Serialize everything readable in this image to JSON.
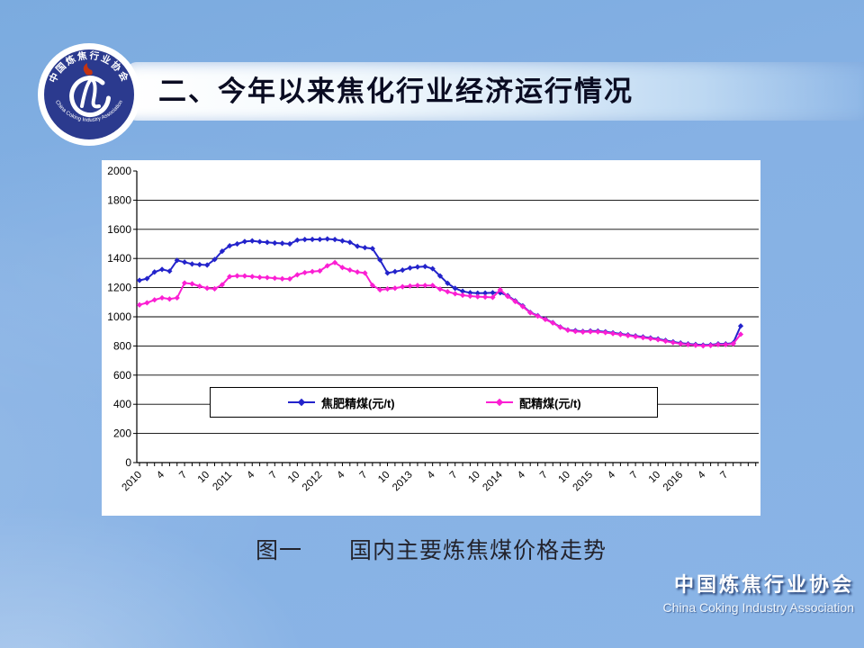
{
  "header": {
    "title": "二、今年以来焦化行业经济运行情况"
  },
  "logo": {
    "ring_text_top": "中国炼焦行业协会",
    "ring_text_bottom": "China Coking Industry Association",
    "navy": "#2b3a8e",
    "flame": "#c43312"
  },
  "caption": "图一　　国内主要炼焦煤价格走势",
  "footer": {
    "name_cn": "中国炼焦行业协会",
    "name_en": "China Coking Industry Association"
  },
  "chart_data": {
    "type": "line",
    "title": "",
    "xlabel": "",
    "ylabel": "",
    "ylim": [
      0,
      2000
    ],
    "ytick_step": 200,
    "grid": "horizontal",
    "legend_position": "inside-bottom",
    "x_frequency": "monthly",
    "x_start": "2010-01",
    "x_end": "2016-09",
    "x_label_every_n_months": 3,
    "x_tick_labels": [
      "2010",
      "4",
      "7",
      "10",
      "2011",
      "4",
      "7",
      "10",
      "2012",
      "4",
      "7",
      "10",
      "2013",
      "4",
      "7",
      "10",
      "2014",
      "4",
      "7",
      "10",
      "2015",
      "4",
      "7",
      "10",
      "2016",
      "4",
      "7"
    ],
    "series": [
      {
        "name": "焦肥精煤(元/t)",
        "color": "#2323cb",
        "values": [
          1250,
          1262,
          1307,
          1325,
          1313,
          1387,
          1375,
          1362,
          1358,
          1355,
          1393,
          1450,
          1487,
          1500,
          1516,
          1521,
          1515,
          1511,
          1506,
          1504,
          1500,
          1526,
          1530,
          1531,
          1531,
          1534,
          1530,
          1521,
          1511,
          1484,
          1474,
          1468,
          1390,
          1300,
          1310,
          1320,
          1335,
          1342,
          1345,
          1330,
          1280,
          1230,
          1195,
          1175,
          1165,
          1162,
          1163,
          1165,
          1165,
          1145,
          1110,
          1075,
          1030,
          1008,
          985,
          960,
          930,
          910,
          905,
          900,
          903,
          902,
          897,
          890,
          883,
          876,
          869,
          862,
          855,
          848,
          838,
          828,
          820,
          814,
          810,
          806,
          808,
          814,
          814,
          820,
          937
        ]
      },
      {
        "name": "配精煤(元/t)",
        "color": "#fb1fd3",
        "values": [
          1082,
          1096,
          1116,
          1130,
          1122,
          1130,
          1232,
          1226,
          1210,
          1196,
          1192,
          1220,
          1276,
          1281,
          1280,
          1276,
          1271,
          1269,
          1265,
          1261,
          1260,
          1288,
          1303,
          1310,
          1315,
          1350,
          1372,
          1338,
          1321,
          1307,
          1300,
          1216,
          1185,
          1191,
          1196,
          1206,
          1211,
          1215,
          1215,
          1215,
          1190,
          1172,
          1158,
          1148,
          1142,
          1138,
          1136,
          1133,
          1185,
          1140,
          1105,
          1070,
          1028,
          1005,
          982,
          958,
          928,
          908,
          900,
          896,
          898,
          897,
          892,
          885,
          878,
          871,
          864,
          857,
          850,
          843,
          833,
          823,
          815,
          809,
          805,
          801,
          803,
          809,
          809,
          815,
          880
        ]
      }
    ]
  }
}
